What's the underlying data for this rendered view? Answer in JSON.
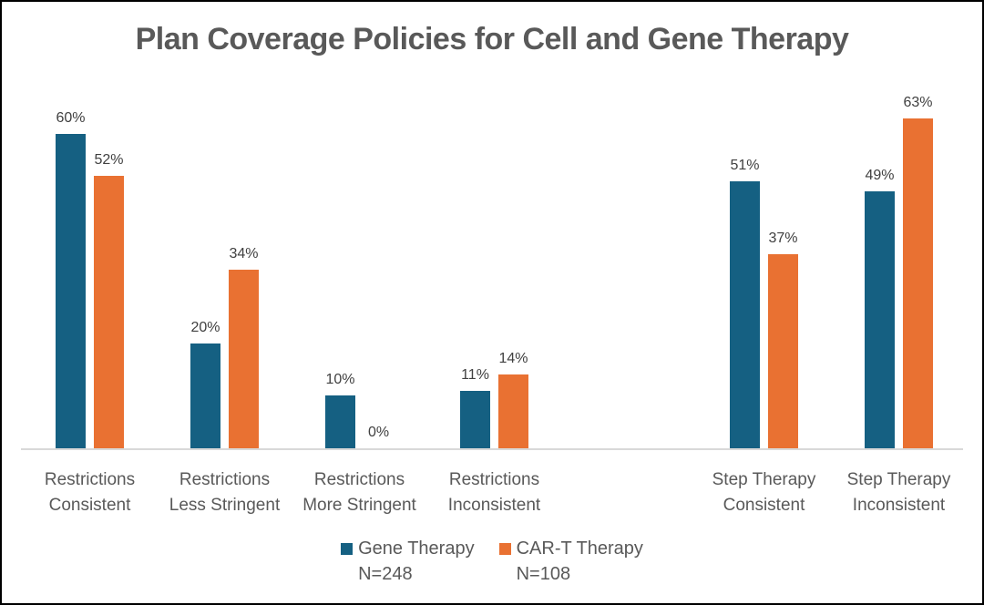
{
  "title": "Plan Coverage Policies for Cell and Gene Therapy",
  "chart_data": {
    "type": "bar",
    "title": "Plan Coverage Policies for Cell and Gene Therapy",
    "categories": [
      "Restrictions Consistent",
      "Restrictions Less Stringent",
      "Restrictions More Stringent",
      "Restrictions Inconsistent",
      "Step Therapy Consistent",
      "Step Therapy Inconsistent"
    ],
    "category_label_lines": [
      [
        "Restrictions",
        "Consistent"
      ],
      [
        "Restrictions",
        "Less Stringent"
      ],
      [
        "Restrictions",
        "More Stringent"
      ],
      [
        "Restrictions",
        "Inconsistent"
      ],
      [
        "Step Therapy",
        "Consistent"
      ],
      [
        "Step Therapy",
        "Inconsistent"
      ]
    ],
    "category_groups": [
      "Restrictions",
      "Restrictions",
      "Restrictions",
      "Restrictions",
      "Step Therapy",
      "Step Therapy"
    ],
    "series": [
      {
        "name": "Gene Therapy",
        "n_label": "N=248",
        "color": "#156082",
        "values": [
          60,
          20,
          10,
          11,
          51,
          49
        ]
      },
      {
        "name": "CAR-T Therapy",
        "n_label": "N=108",
        "color": "#E97132",
        "values": [
          52,
          34,
          0,
          14,
          37,
          63
        ]
      }
    ],
    "value_suffix": "%",
    "ylim": [
      0,
      70
    ],
    "grid": false,
    "y_axis_visible": false,
    "legend_position": "bottom"
  },
  "colors": {
    "series_gene_therapy": "#156082",
    "series_cart_therapy": "#E97132",
    "axis_line": "#D9D9D9",
    "axis_text": "#595959",
    "title_text": "#595959",
    "data_label_text": "#404040",
    "background": "#FFFFFF",
    "border": "#000000"
  }
}
